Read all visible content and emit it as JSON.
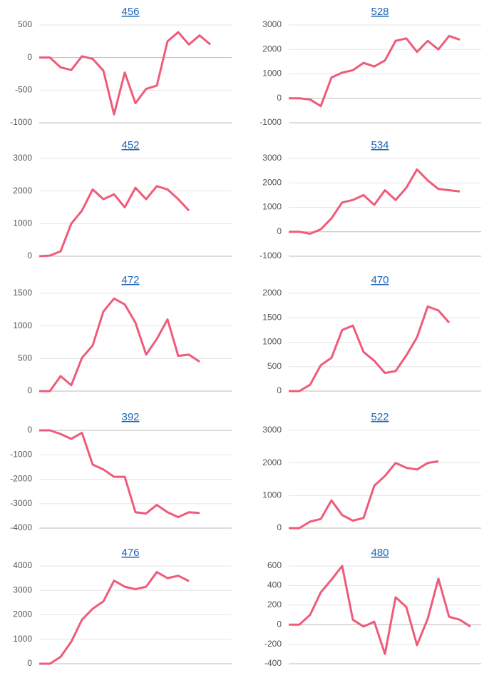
{
  "chart_data": [
    {
      "type": "line",
      "title": "456",
      "color": "#ef5b78",
      "ylim": [
        -1000,
        500
      ],
      "yticks": [
        -1000,
        -500,
        0,
        500
      ],
      "grid": true,
      "values": [
        0,
        0,
        -150,
        -190,
        20,
        -20,
        -200,
        -870,
        -230,
        -700,
        -480,
        -430,
        250,
        390,
        200,
        340,
        200
      ]
    },
    {
      "type": "line",
      "title": "528",
      "color": "#ef5b78",
      "ylim": [
        -1000,
        3000
      ],
      "yticks": [
        -1000,
        0,
        1000,
        2000,
        3000
      ],
      "grid": true,
      "values": [
        0,
        0,
        -50,
        -320,
        850,
        1050,
        1150,
        1450,
        1300,
        1550,
        2350,
        2450,
        1900,
        2350,
        2000,
        2550,
        2400
      ]
    },
    {
      "type": "line",
      "title": "452",
      "color": "#ef5b78",
      "ylim": [
        0,
        3000
      ],
      "yticks": [
        0,
        1000,
        2000,
        3000
      ],
      "grid": true,
      "values": [
        0,
        20,
        150,
        1000,
        1400,
        2050,
        1750,
        1900,
        1500,
        2100,
        1750,
        2150,
        2050,
        1750,
        1400
      ]
    },
    {
      "type": "line",
      "title": "534",
      "color": "#ef5b78",
      "ylim": [
        -1000,
        3000
      ],
      "yticks": [
        -1000,
        0,
        1000,
        2000,
        3000
      ],
      "grid": true,
      "values": [
        0,
        0,
        -80,
        100,
        550,
        1200,
        1300,
        1500,
        1100,
        1700,
        1300,
        1800,
        2550,
        2100,
        1750,
        1700,
        1650
      ]
    },
    {
      "type": "line",
      "title": "472",
      "color": "#ef5b78",
      "ylim": [
        0,
        1500
      ],
      "yticks": [
        0,
        500,
        1000,
        1500
      ],
      "grid": true,
      "values": [
        0,
        0,
        230,
        90,
        510,
        700,
        1220,
        1420,
        1330,
        1050,
        560,
        800,
        1100,
        540,
        560,
        450
      ]
    },
    {
      "type": "line",
      "title": "470",
      "color": "#ef5b78",
      "ylim": [
        0,
        2000
      ],
      "yticks": [
        0,
        500,
        1000,
        1500,
        2000
      ],
      "grid": true,
      "values": [
        0,
        0,
        130,
        530,
        680,
        1250,
        1340,
        800,
        620,
        370,
        410,
        730,
        1100,
        1730,
        1650,
        1400
      ]
    },
    {
      "type": "line",
      "title": "392",
      "color": "#ef5b78",
      "ylim": [
        -4000,
        0
      ],
      "yticks": [
        -4000,
        -3000,
        -2000,
        -1000,
        0
      ],
      "grid": true,
      "values": [
        0,
        0,
        -150,
        -350,
        -100,
        -1400,
        -1600,
        -1900,
        -1900,
        -3350,
        -3400,
        -3050,
        -3350,
        -3550,
        -3350,
        -3380
      ]
    },
    {
      "type": "line",
      "title": "522",
      "color": "#ef5b78",
      "ylim": [
        0,
        3000
      ],
      "yticks": [
        0,
        1000,
        2000,
        3000
      ],
      "grid": true,
      "values": [
        0,
        0,
        200,
        280,
        850,
        400,
        230,
        310,
        1300,
        1600,
        2000,
        1850,
        1800,
        2000,
        2050
      ]
    },
    {
      "type": "line",
      "title": "476",
      "color": "#ef5b78",
      "ylim": [
        0,
        4000
      ],
      "yticks": [
        0,
        1000,
        2000,
        3000,
        4000
      ],
      "grid": true,
      "values": [
        0,
        0,
        280,
        900,
        1800,
        2250,
        2550,
        3400,
        3150,
        3050,
        3150,
        3750,
        3500,
        3600,
        3380
      ]
    },
    {
      "type": "line",
      "title": "480",
      "color": "#ef5b78",
      "ylim": [
        -400,
        600
      ],
      "yticks": [
        -400,
        -200,
        0,
        200,
        400,
        600
      ],
      "grid": true,
      "values": [
        0,
        0,
        100,
        330,
        460,
        600,
        50,
        -20,
        30,
        -300,
        280,
        180,
        -210,
        60,
        470,
        80,
        50,
        -20
      ]
    }
  ]
}
